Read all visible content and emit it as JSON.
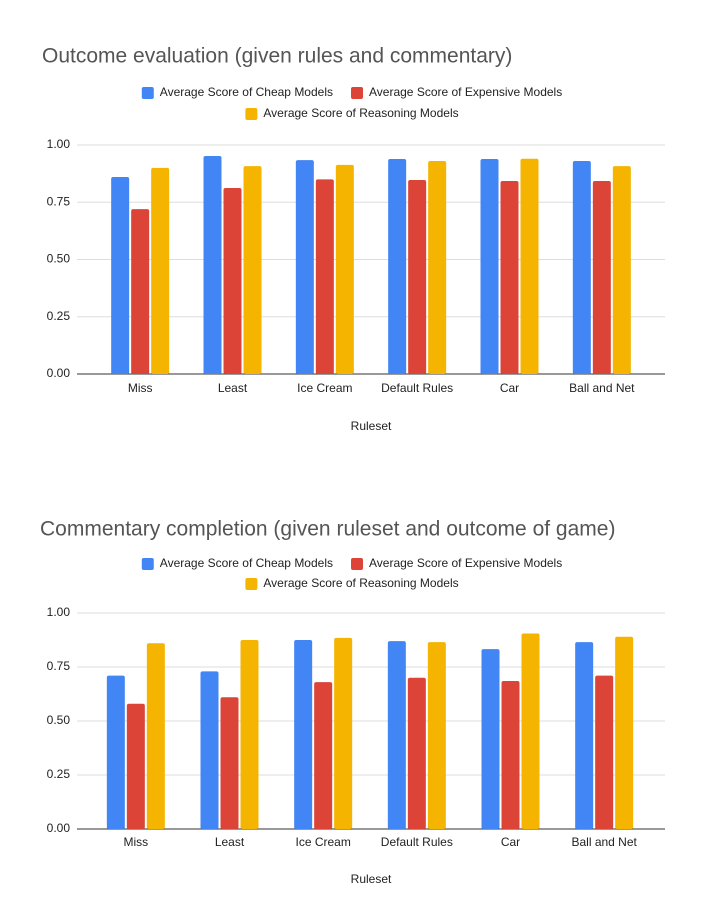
{
  "chart_data": [
    {
      "type": "bar",
      "title": "Outcome evaluation (given rules and commentary)",
      "x_label": "Ruleset",
      "categories": [
        "Miss",
        "Least",
        "Ice Cream",
        "Default Rules",
        "Car",
        "Ball and Net"
      ],
      "series": [
        {
          "name": "Average Score of Cheap Models",
          "color": "#4285f4",
          "values": [
            0.86,
            0.952,
            0.934,
            0.939,
            0.939,
            0.93
          ]
        },
        {
          "name": "Average Score of Expensive Models",
          "color": "#db4437",
          "values": [
            0.72,
            0.812,
            0.85,
            0.847,
            0.843,
            0.843
          ]
        },
        {
          "name": "Average Score of Reasoning Models",
          "color": "#f4b400",
          "values": [
            0.9,
            0.908,
            0.913,
            0.93,
            0.94,
            0.908
          ]
        }
      ],
      "ylim": [
        0,
        1
      ],
      "yticks": [
        {
          "value": 0,
          "label": "0.00"
        },
        0.25,
        {
          "value": 0.5,
          "label": "0.50"
        },
        0.75,
        {
          "value": 1,
          "label": "1.00"
        }
      ],
      "grid": true,
      "legend": "top"
    },
    {
      "type": "bar",
      "title": "Commentary completion (given ruleset and outcome of game)",
      "x_label": "Ruleset",
      "categories": [
        "Miss",
        "Least",
        "Ice Cream",
        "Default Rules",
        "Car",
        "Ball and Net"
      ],
      "series": [
        {
          "name": "Average Score of Cheap Models",
          "color": "#4285f4",
          "values": [
            0.71,
            0.73,
            0.875,
            0.87,
            0.833,
            0.865
          ]
        },
        {
          "name": "Average Score of Expensive Models",
          "color": "#db4437",
          "values": [
            0.58,
            0.61,
            0.68,
            0.7,
            0.685,
            0.71
          ]
        },
        {
          "name": "Average Score of Reasoning Models",
          "color": "#f4b400",
          "values": [
            0.86,
            0.875,
            0.885,
            0.865,
            0.905,
            0.89
          ]
        }
      ],
      "ylim": [
        0,
        1
      ],
      "yticks": [
        {
          "value": 0,
          "label": "0.00"
        },
        0.25,
        {
          "value": 0.5,
          "label": "0.50"
        },
        0.75,
        {
          "value": 1,
          "label": "1.00"
        }
      ],
      "grid": true,
      "legend": "top"
    }
  ]
}
